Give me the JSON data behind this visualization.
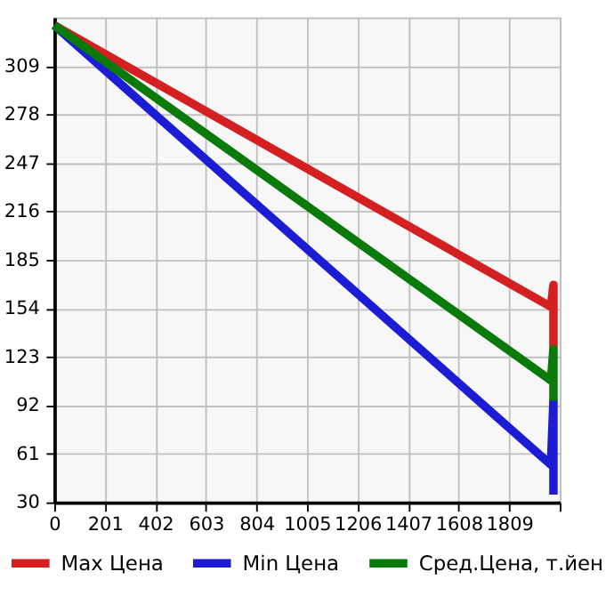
{
  "chart_data": {
    "type": "line",
    "xlim": [
      0,
      2010
    ],
    "ylim": [
      30,
      340
    ],
    "xticks": [
      0,
      201,
      402,
      603,
      804,
      1005,
      1206,
      1407,
      1608,
      1809,
      {
        "value": 2010,
        "label": null
      }
    ],
    "yticks": [
      30,
      61,
      92,
      123,
      154,
      185,
      216,
      247,
      278,
      309
    ],
    "grid": true,
    "legend": "bottom",
    "marker": "none",
    "line_style": "solid",
    "series": [
      {
        "name": "Max Цена",
        "color": "#d42020",
        "x": [
          0,
          1975,
          1985,
          1985
        ],
        "values": [
          335,
          155,
          169,
          128
        ]
      },
      {
        "name": "Min Цена",
        "color": "#1c1cd4",
        "x": [
          0,
          1975,
          1985,
          1985
        ],
        "values": [
          335,
          54,
          95,
          35
        ]
      },
      {
        "name": "Сред.Цена, т.йен",
        "color": "#0a7a0a",
        "x": [
          0,
          1975,
          1985,
          1985
        ],
        "values": [
          335,
          108,
          128,
          95
        ]
      }
    ]
  }
}
